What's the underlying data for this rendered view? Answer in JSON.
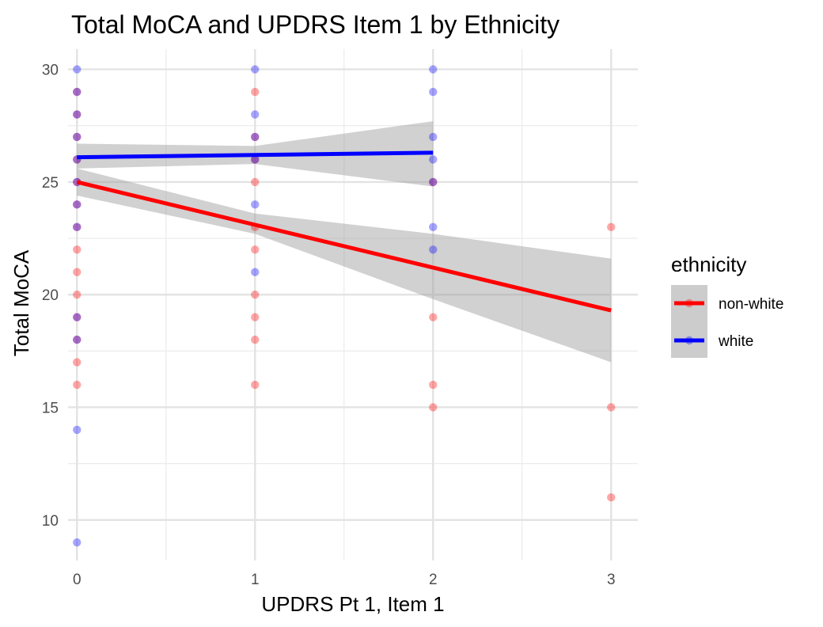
{
  "chart_data": {
    "type": "scatter",
    "title": "Total MoCA and UPDRS Item 1 by Ethnicity",
    "xlabel": "UPDRS Pt 1, Item 1",
    "ylabel": "Total MoCA",
    "xlim": [
      -0.05,
      3.15
    ],
    "ylim": [
      8.2,
      30.9
    ],
    "x_ticks": [
      "0",
      "1",
      "2",
      "3"
    ],
    "x_tick_values": [
      0,
      1,
      2,
      3
    ],
    "y_ticks": [
      "10",
      "15",
      "20",
      "25",
      "30"
    ],
    "y_tick_values": [
      10,
      15,
      20,
      25,
      30
    ],
    "legend": {
      "title": "ethnicity",
      "position": "right",
      "entries": [
        "non-white",
        "white"
      ]
    },
    "series": [
      {
        "name": "non-white",
        "color": "#ff0000",
        "points": [
          [
            0,
            29
          ],
          [
            0,
            28
          ],
          [
            0,
            27
          ],
          [
            0,
            26
          ],
          [
            0,
            25
          ],
          [
            0,
            24
          ],
          [
            0,
            23
          ],
          [
            0,
            22
          ],
          [
            0,
            21
          ],
          [
            0,
            20
          ],
          [
            0,
            19
          ],
          [
            0,
            18
          ],
          [
            0,
            17
          ],
          [
            0,
            16
          ],
          [
            1,
            29
          ],
          [
            1,
            27
          ],
          [
            1,
            26
          ],
          [
            1,
            25
          ],
          [
            1,
            23
          ],
          [
            1,
            22
          ],
          [
            1,
            20
          ],
          [
            1,
            19
          ],
          [
            1,
            18
          ],
          [
            1,
            16
          ],
          [
            2,
            25
          ],
          [
            2,
            19
          ],
          [
            2,
            16
          ],
          [
            2,
            15
          ],
          [
            3,
            23
          ],
          [
            3,
            15
          ],
          [
            3,
            11
          ]
        ],
        "fit": {
          "x": [
            0,
            3
          ],
          "y": [
            25.0,
            19.3
          ]
        },
        "band": {
          "x": [
            0,
            1,
            2,
            3
          ],
          "lower": [
            24.4,
            22.7,
            19.8,
            17.0
          ],
          "upper": [
            25.6,
            23.6,
            22.7,
            21.6
          ]
        }
      },
      {
        "name": "white",
        "color": "#0000ff",
        "points": [
          [
            0,
            30
          ],
          [
            0,
            29
          ],
          [
            0,
            28
          ],
          [
            0,
            27
          ],
          [
            0,
            26
          ],
          [
            0,
            25
          ],
          [
            0,
            24
          ],
          [
            0,
            23
          ],
          [
            0,
            19
          ],
          [
            0,
            18
          ],
          [
            0,
            14
          ],
          [
            0,
            9
          ],
          [
            1,
            30
          ],
          [
            1,
            28
          ],
          [
            1,
            27
          ],
          [
            1,
            26
          ],
          [
            1,
            24
          ],
          [
            1,
            21
          ],
          [
            2,
            30
          ],
          [
            2,
            29
          ],
          [
            2,
            27
          ],
          [
            2,
            26
          ],
          [
            2,
            25
          ],
          [
            2,
            23
          ],
          [
            2,
            22
          ]
        ],
        "fit": {
          "x": [
            0,
            2
          ],
          "y": [
            26.1,
            26.3
          ]
        },
        "band": {
          "x": [
            0,
            1,
            2
          ],
          "lower": [
            25.6,
            25.8,
            24.8
          ],
          "upper": [
            26.7,
            26.6,
            27.7
          ]
        }
      }
    ]
  }
}
